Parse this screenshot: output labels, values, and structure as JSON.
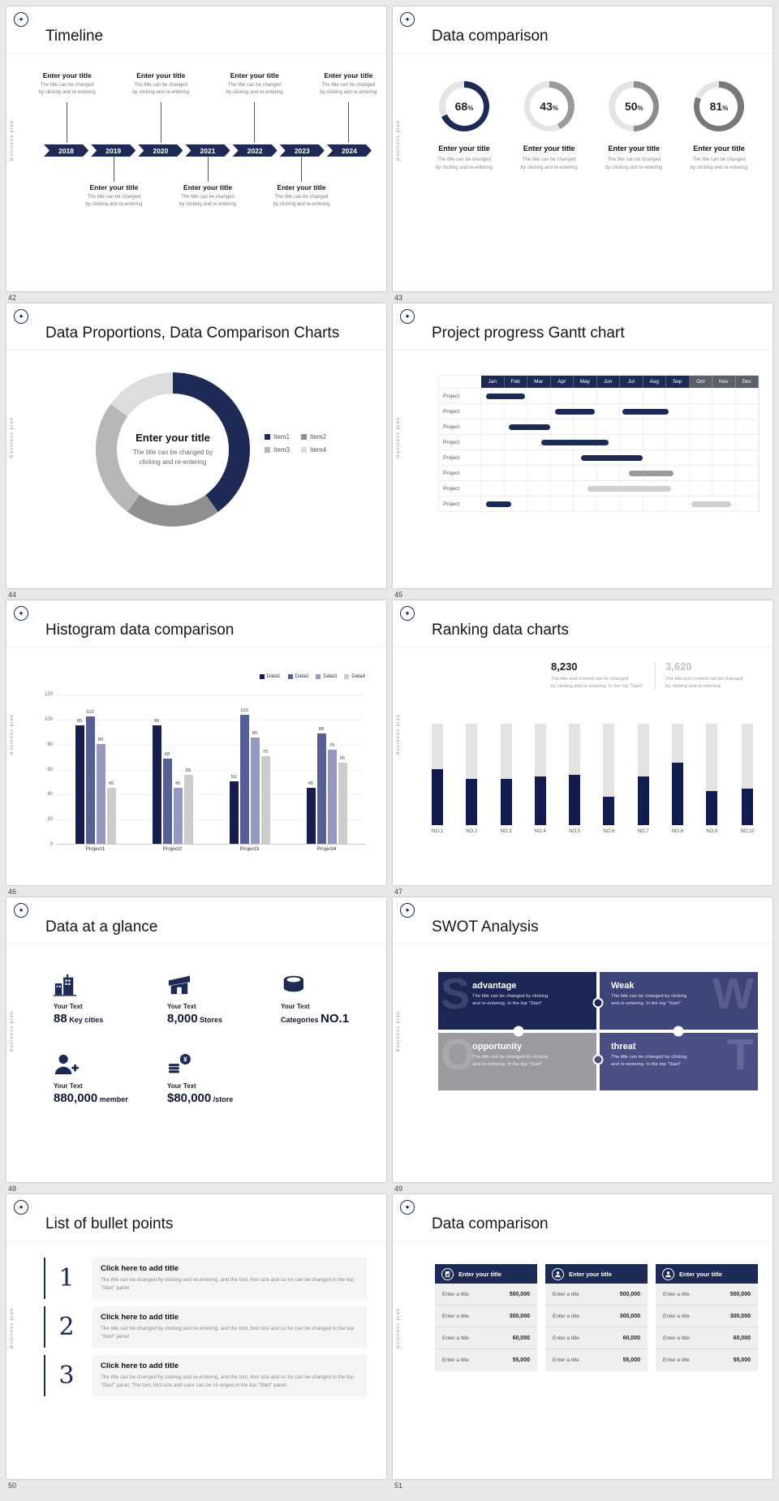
{
  "page": {
    "bg": "#e9e9e9",
    "accent": "#1e2a56"
  },
  "brand": {
    "logo_glyph": "✦",
    "vertical_label": "Business plan"
  },
  "slide_timeline": {
    "number": "42",
    "title": "Timeline",
    "years": [
      "2018",
      "2019",
      "2020",
      "2021",
      "2022",
      "2023",
      "2024"
    ],
    "item": {
      "title": "Enter your title",
      "line1": "The title can be changed",
      "line2": "by clicking and re-entering"
    }
  },
  "slide_donut_row": {
    "number": "43",
    "title": "Data comparison",
    "item_title": "Enter your title",
    "item_line1": "The title can be changed",
    "item_line2": "by clicking and re-entering",
    "chart_data": {
      "type": "donut-set",
      "track_color": "#e4e4e4",
      "items": [
        {
          "percent": 68,
          "color": "#1e2a56"
        },
        {
          "percent": 43,
          "color": "#9a9a9a"
        },
        {
          "percent": 50,
          "color": "#8c8c8c"
        },
        {
          "percent": 81,
          "color": "#787878"
        }
      ]
    }
  },
  "slide_donut_chart": {
    "number": "44",
    "title": "Data Proportions, Data Comparison Charts",
    "center_title": "Enter your title",
    "center_line1": "The title can be changed by",
    "center_line2": "clicking and re-entering",
    "chart_data": {
      "type": "pie",
      "legend": [
        {
          "label": "Item1",
          "color": "#1e2a56",
          "value": 40
        },
        {
          "label": "Item2",
          "color": "#8f8f8f",
          "value": 20
        },
        {
          "label": "Item3",
          "color": "#b7b7b7",
          "value": 25
        },
        {
          "label": "Item4",
          "color": "#dddddd",
          "value": 15
        }
      ]
    }
  },
  "slide_gantt": {
    "number": "45",
    "title": "Project progress Gantt chart",
    "months": [
      "Jan",
      "Feb",
      "Mar",
      "Apr",
      "May",
      "Jun",
      "Jul",
      "Aug",
      "Sep",
      "Oct",
      "Nov",
      "Dec"
    ],
    "navy_months": 9,
    "row_label": "Project",
    "rows": 8,
    "chart_data": {
      "type": "gantt",
      "bars": [
        {
          "row": 0,
          "start": 0.2,
          "span": 1.7,
          "color": "#1e2a56"
        },
        {
          "row": 1,
          "start": 3.2,
          "span": 1.7,
          "color": "#1e2a56"
        },
        {
          "row": 1,
          "start": 6.1,
          "span": 2.0,
          "color": "#1e2a56"
        },
        {
          "row": 2,
          "start": 1.2,
          "span": 1.8,
          "color": "#1e2a56"
        },
        {
          "row": 3,
          "start": 2.6,
          "span": 2.9,
          "color": "#1e2a56"
        },
        {
          "row": 4,
          "start": 4.3,
          "span": 2.7,
          "color": "#1e2a56"
        },
        {
          "row": 5,
          "start": 6.4,
          "span": 1.9,
          "color": "#9b9b9b"
        },
        {
          "row": 6,
          "start": 4.6,
          "span": 3.6,
          "color": "#cfcfcf"
        },
        {
          "row": 7,
          "start": 0.2,
          "span": 1.1,
          "color": "#1e2a56"
        },
        {
          "row": 7,
          "start": 9.1,
          "span": 1.7,
          "color": "#cfcfcf"
        }
      ]
    }
  },
  "slide_histogram": {
    "number": "46",
    "title": "Histogram data comparison",
    "chart_data": {
      "type": "bar",
      "categories": [
        "Project1",
        "Project2",
        "Project3",
        "Project4"
      ],
      "series": [
        {
          "name": "Data1",
          "color": "#171e4e",
          "values": [
            95,
            95,
            50,
            45
          ]
        },
        {
          "name": "Data2",
          "color": "#556097",
          "values": [
            102,
            68,
            103,
            88
          ]
        },
        {
          "name": "Data3",
          "color": "#9599bf",
          "values": [
            80,
            45,
            85,
            75
          ]
        },
        {
          "name": "Data4",
          "color": "#cccccc",
          "values": [
            45,
            55,
            70,
            65
          ]
        }
      ],
      "ylim": [
        0,
        120
      ],
      "ticks": [
        0,
        20,
        40,
        60,
        80,
        100,
        120
      ]
    }
  },
  "slide_ranking": {
    "number": "47",
    "title": "Ranking data charts",
    "stat_primary": {
      "value": "8,230",
      "line1": "The title and content can be changed",
      "line2": "by clicking and re-entering. In the top \"Start\""
    },
    "stat_secondary": {
      "value": "3,620",
      "line1": "The title and content can be changed",
      "line2": "by clicking and re-entering"
    },
    "chart_data": {
      "type": "stacked-bar",
      "categories": [
        "NO.1",
        "NO.2",
        "NO.3",
        "NO.4",
        "NO.5",
        "NO.6",
        "NO.7",
        "NO.8",
        "NO.9",
        "NO.10"
      ],
      "values": [
        55,
        46,
        46,
        48,
        50,
        28,
        48,
        62,
        34,
        36
      ],
      "max": 100,
      "bar_color": "#131c4e",
      "track_color": "#e3e3e3"
    }
  },
  "slide_stats": {
    "number": "48",
    "title": "Data at a glance",
    "items": [
      {
        "icon": "buildings-icon",
        "label": "Your Text",
        "pre": "",
        "big": "88",
        "post": "Key cities"
      },
      {
        "icon": "store-icon",
        "label": "Your Text",
        "pre": "",
        "big": "8,000",
        "post": "Stores"
      },
      {
        "icon": "boxes-icon",
        "label": "Your Text",
        "pre": "Categories",
        "big": "NO.1",
        "post": ""
      },
      {
        "icon": "member-icon",
        "label": "Your Text",
        "pre": "",
        "big": "880,000",
        "post": "member"
      },
      {
        "icon": "coins-icon",
        "label": "Your Text",
        "pre": "",
        "big": "$80,000",
        "post": "/store"
      }
    ]
  },
  "slide_swot": {
    "number": "49",
    "title": "SWOT Analysis",
    "pieces": [
      {
        "letter": "S",
        "letter_side": "left",
        "title": "advantage",
        "color": "#1c2654",
        "line1": "The title can be changed by clicking",
        "line2": "and re-entering. In the top \"Start\""
      },
      {
        "letter": "W",
        "letter_side": "right",
        "title": "Weak",
        "color": "#3d4478",
        "line1": "The title can be changed by clicking",
        "line2": "and re-entering. In the top \"Start\""
      },
      {
        "letter": "O",
        "letter_side": "left",
        "title": "opportunity",
        "color": "#9b9b9f",
        "line1": "The title can be changed by clicking",
        "line2": "and re-entering. In the top \"Start\""
      },
      {
        "letter": "T",
        "letter_side": "right",
        "title": "threat",
        "color": "#4a5086",
        "line1": "The title can be changed by clicking",
        "line2": "and re-entering. In the top \"Start\""
      }
    ]
  },
  "slide_bullets": {
    "number": "50",
    "title": "List of bullet points",
    "items": [
      {
        "num": "1",
        "heading": "Click here to add title",
        "body": "The title can be changed by clicking and re-entering, and the font, font size and co for can be changed in the top \"Start\" panel"
      },
      {
        "num": "2",
        "heading": "Click here to add title",
        "body": "The title can be changed by clicking and re-entering, and the font, font size and co for can be changed in the top \"Start\" panel"
      },
      {
        "num": "3",
        "heading": "Click here to add title",
        "body": "The title can be changed by clicking and re-entering, and the font, font size and co for can be changed in the top \"Start\" panel. The font, font size and color can be ch anged in the top \"Start\" panel."
      }
    ]
  },
  "slide_tables": {
    "number": "51",
    "title": "Data comparison",
    "cards": [
      {
        "icon": "report-icon",
        "header": "Enter your title",
        "rows": [
          [
            "Enter a title",
            "500,000"
          ],
          [
            "Enter a title",
            "300,000"
          ],
          [
            "Enter a title",
            "60,000"
          ],
          [
            "Enter a title",
            "55,000"
          ]
        ]
      },
      {
        "icon": "user-icon",
        "header": "Enter your title",
        "rows": [
          [
            "Enter a title",
            "500,000"
          ],
          [
            "Enter a title",
            "300,000"
          ],
          [
            "Enter a title",
            "60,000"
          ],
          [
            "Enter a title",
            "55,000"
          ]
        ]
      },
      {
        "icon": "user-icon",
        "header": "Enter your title",
        "rows": [
          [
            "Enter a title",
            "500,000"
          ],
          [
            "Enter a title",
            "300,000"
          ],
          [
            "Enter a title",
            "60,000"
          ],
          [
            "Enter a title",
            "55,000"
          ]
        ]
      }
    ]
  }
}
